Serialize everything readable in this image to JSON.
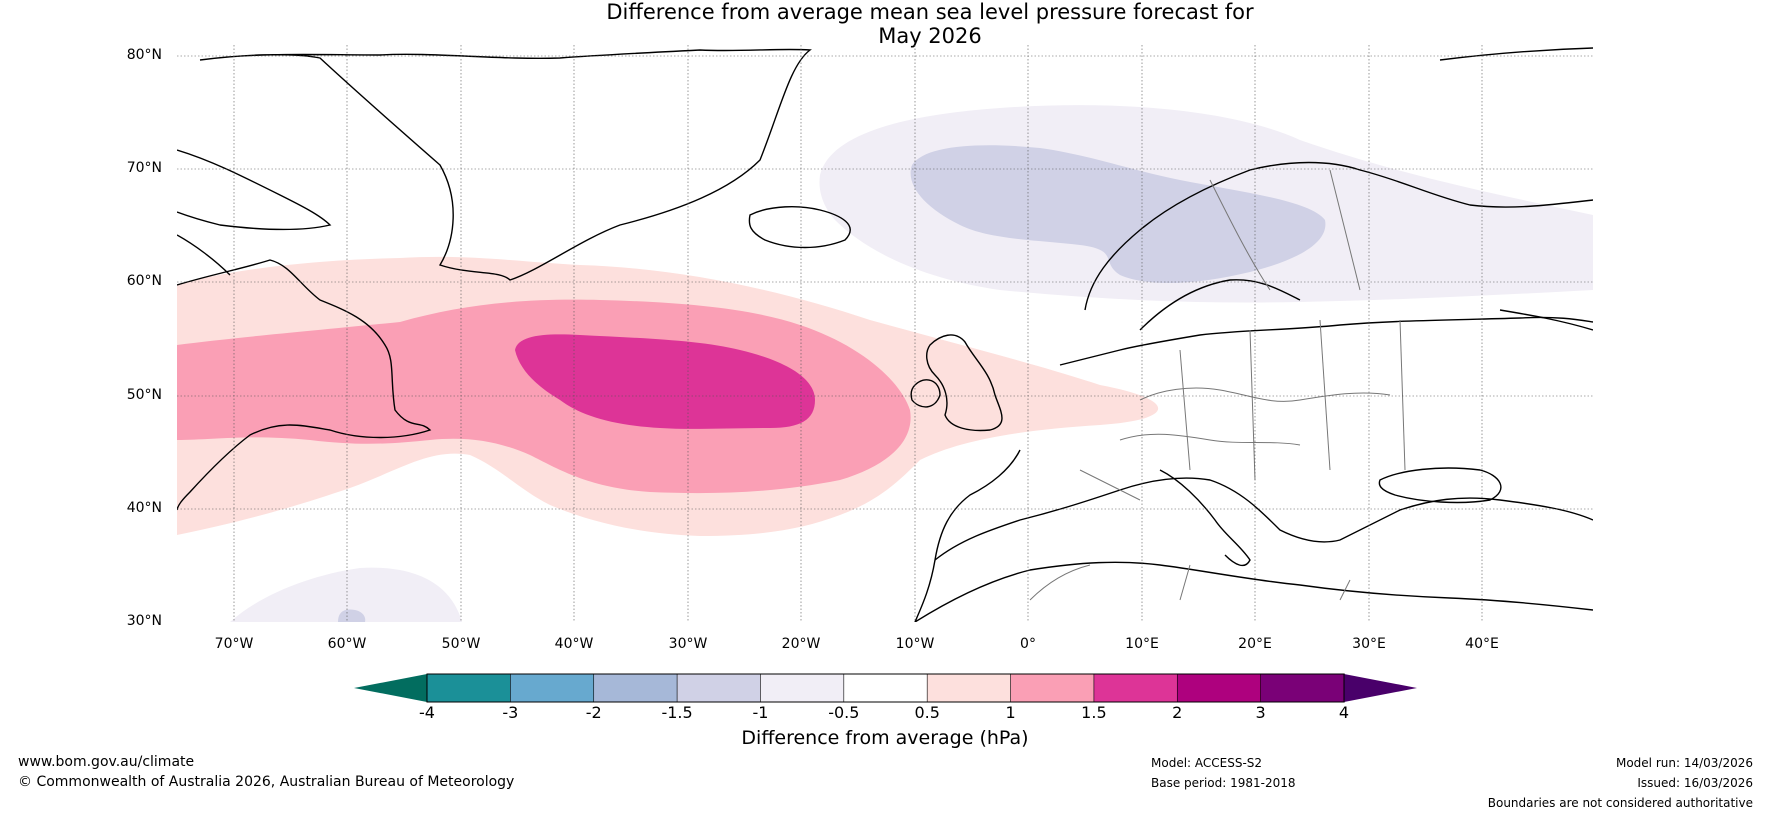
{
  "title": {
    "line1": "Difference from average mean sea level pressure forecast for",
    "line2": "May 2026"
  },
  "map": {
    "lat_labels": [
      "80°N",
      "70°N",
      "60°N",
      "50°N",
      "40°N",
      "30°N"
    ],
    "lon_labels": [
      "70°W",
      "60°W",
      "50°W",
      "40°W",
      "30°W",
      "20°W",
      "10°W",
      "0°",
      "10°E",
      "20°E",
      "30°E",
      "40°E"
    ],
    "lat_range": [
      30,
      80
    ],
    "lon_range": [
      -75,
      50
    ],
    "anomaly_regions": [
      {
        "name": "north-atlantic-high",
        "min_hpa": 2,
        "center": "52°N 30°W"
      },
      {
        "name": "scandinavian-low",
        "min_hpa": -1.5,
        "center": "66°N 15°E"
      }
    ]
  },
  "colorbar": {
    "ticks": [
      "-4",
      "-3",
      "-2",
      "-1.5",
      "-1",
      "-0.5",
      "0.5",
      "1",
      "1.5",
      "2",
      "3",
      "4"
    ],
    "colors": [
      "#1b9098",
      "#67a9cf",
      "#a6b8d8",
      "#d0d1e6",
      "#f1eef6",
      "#ffffff",
      "#fde0dd",
      "#fa9fb5",
      "#dd3497",
      "#ae017e",
      "#7a0177"
    ],
    "under_color": "#026d5f",
    "over_color": "#49006a",
    "label": "Difference from average (hPa)"
  },
  "footer": {
    "website": "www.bom.gov.au/climate",
    "copyright": "© Commonwealth of Australia 2026, Australian Bureau of Meteorology",
    "model": "Model: ACCESS-S2",
    "base_period": "Base period: 1981-2018",
    "model_run": "Model run: 14/03/2026",
    "issued": "Issued: 16/03/2026",
    "disclaimer": "Boundaries are not considered authoritative"
  }
}
